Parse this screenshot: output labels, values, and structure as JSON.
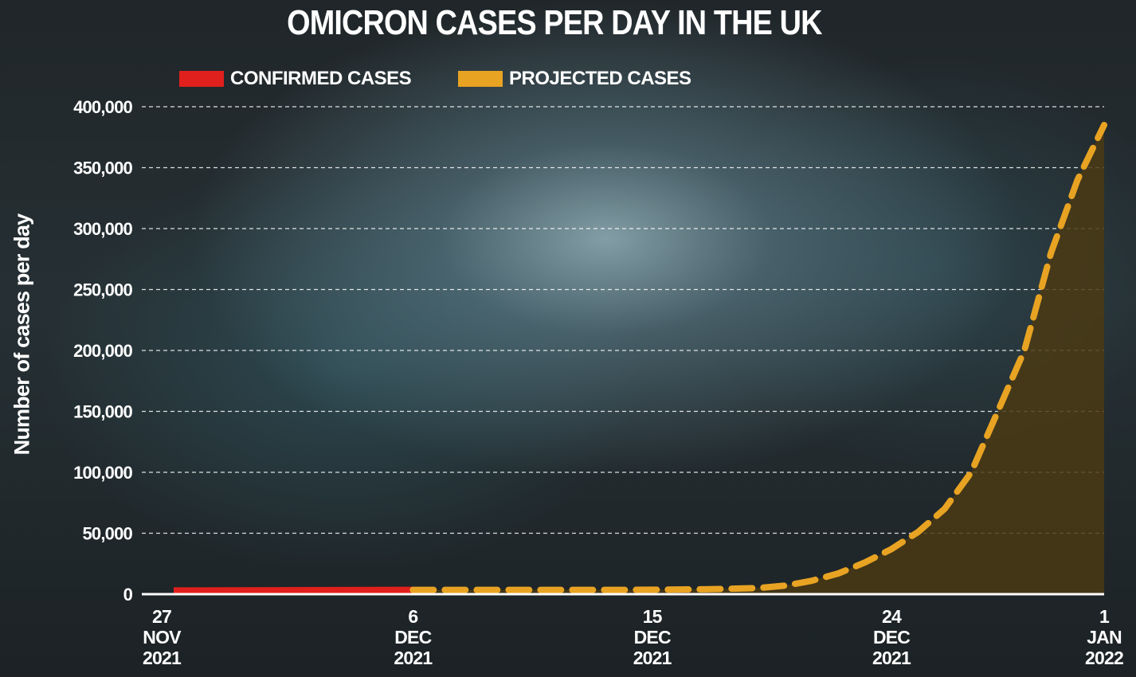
{
  "chart_data": {
    "type": "line",
    "title": "OMICRON CASES PER DAY IN THE UK",
    "ylabel": "Number of cases per day",
    "xlabel": "",
    "ylim": [
      0,
      400000
    ],
    "y_ticks": [
      "400,000",
      "350,000",
      "300,000",
      "250,000",
      "200,000",
      "150,000",
      "100,000",
      "50,000",
      "0"
    ],
    "y_tick_values": [
      400000,
      350000,
      300000,
      250000,
      200000,
      150000,
      100000,
      50000,
      0
    ],
    "x_ticks": [
      {
        "date": "2021-11-27",
        "lines": [
          "27",
          "NOV",
          "2021"
        ]
      },
      {
        "date": "2021-12-06",
        "lines": [
          "6",
          "DEC",
          "2021"
        ]
      },
      {
        "date": "2021-12-15",
        "lines": [
          "15",
          "DEC",
          "2021"
        ]
      },
      {
        "date": "2021-12-24",
        "lines": [
          "24",
          "DEC",
          "2021"
        ]
      },
      {
        "date": "2022-01-01",
        "lines": [
          "1",
          "JAN",
          "2022"
        ]
      }
    ],
    "grid": true,
    "legend_position": "top-left",
    "series": [
      {
        "name": "CONFIRMED CASES",
        "color": "#e0201c",
        "style": "solid",
        "points": [
          {
            "x": "2021-11-27",
            "y": 3000
          },
          {
            "x": "2021-12-06",
            "y": 3500
          }
        ]
      },
      {
        "name": "PROJECTED CASES",
        "color": "#e8a323",
        "style": "dashed",
        "area_fill": "#4a3a14",
        "points": [
          {
            "x": "2021-12-06",
            "y": 3500
          },
          {
            "x": "2021-12-10",
            "y": 3500
          },
          {
            "x": "2021-12-14",
            "y": 3500
          },
          {
            "x": "2021-12-17",
            "y": 4000
          },
          {
            "x": "2021-12-19",
            "y": 5000
          },
          {
            "x": "2021-12-20",
            "y": 7000
          },
          {
            "x": "2021-12-21",
            "y": 11000
          },
          {
            "x": "2021-12-22",
            "y": 17000
          },
          {
            "x": "2021-12-23",
            "y": 26000
          },
          {
            "x": "2021-12-24",
            "y": 37000
          },
          {
            "x": "2021-12-25",
            "y": 51000
          },
          {
            "x": "2021-12-26",
            "y": 70000
          },
          {
            "x": "2021-12-27",
            "y": 100000
          },
          {
            "x": "2021-12-28",
            "y": 150000
          },
          {
            "x": "2021-12-29",
            "y": 200000
          },
          {
            "x": "2021-12-30",
            "y": 280000
          },
          {
            "x": "2021-12-31",
            "y": 340000
          },
          {
            "x": "2022-01-01",
            "y": 385000
          }
        ]
      }
    ]
  }
}
